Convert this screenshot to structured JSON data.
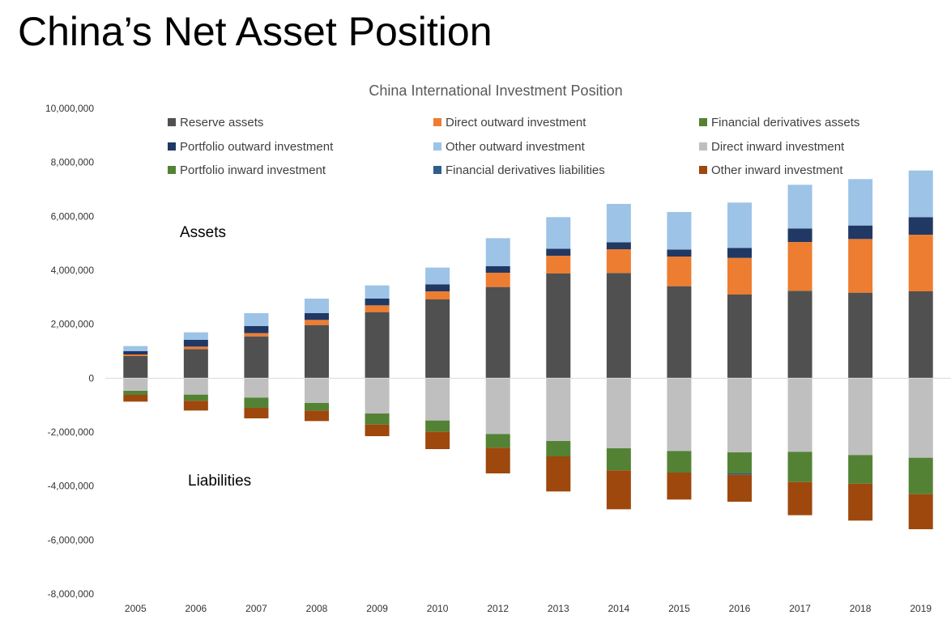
{
  "slide": {
    "title": "China’s Net Asset Position"
  },
  "chart_data": {
    "type": "bar",
    "stacked": true,
    "title": "China International Investment Position",
    "categories": [
      "2005",
      "2006",
      "2007",
      "2008",
      "2009",
      "2010",
      "2012",
      "2013",
      "2014",
      "2015",
      "2016",
      "2017",
      "2018",
      "2019"
    ],
    "ylim": [
      -8000000,
      10000000
    ],
    "yticks": [
      10000000,
      8000000,
      6000000,
      4000000,
      2000000,
      0,
      -2000000,
      -4000000,
      -6000000,
      -8000000
    ],
    "ytick_labels": [
      "10,000,000",
      "8,000,000",
      "6,000,000",
      "4,000,000",
      "2,000,000",
      "0",
      "-2,000,000",
      "-4,000,000",
      "-6,000,000",
      "-8,000,000"
    ],
    "grid": false,
    "legend_position": "top",
    "annotations": {
      "assets": "Assets",
      "liabilities": "Liabilities"
    },
    "series": [
      {
        "name": "Reserve assets",
        "color": "#505050",
        "values": [
          820000,
          1080000,
          1550000,
          1970000,
          2450000,
          2920000,
          3380000,
          3880000,
          3900000,
          3410000,
          3100000,
          3240000,
          3170000,
          3220000
        ]
      },
      {
        "name": "Direct outward investment",
        "color": "#ED7D31",
        "values": [
          60000,
          90000,
          120000,
          190000,
          250000,
          300000,
          530000,
          660000,
          880000,
          1100000,
          1360000,
          1810000,
          1990000,
          2100000
        ]
      },
      {
        "name": "Financial derivatives assets",
        "color": "#548235",
        "values": [
          0,
          0,
          0,
          0,
          0,
          0,
          0,
          0,
          0,
          0,
          0,
          0,
          0,
          0
        ]
      },
      {
        "name": "Portfolio outward investment",
        "color": "#203864",
        "values": [
          120000,
          250000,
          260000,
          250000,
          250000,
          260000,
          240000,
          260000,
          260000,
          260000,
          370000,
          500000,
          500000,
          650000
        ]
      },
      {
        "name": "Other outward investment",
        "color": "#9DC3E6",
        "values": [
          190000,
          280000,
          480000,
          540000,
          490000,
          620000,
          1040000,
          1170000,
          1420000,
          1390000,
          1680000,
          1620000,
          1720000,
          1730000
        ]
      },
      {
        "name": "Direct inward investment",
        "color": "#BFBFBF",
        "values": [
          -470000,
          -610000,
          -720000,
          -920000,
          -1310000,
          -1570000,
          -2070000,
          -2330000,
          -2600000,
          -2700000,
          -2750000,
          -2730000,
          -2850000,
          -2950000
        ]
      },
      {
        "name": "Portfolio inward investment",
        "color": "#548235",
        "values": [
          -150000,
          -230000,
          -380000,
          -280000,
          -410000,
          -420000,
          -510000,
          -570000,
          -820000,
          -800000,
          -780000,
          -1120000,
          -1060000,
          -1350000
        ]
      },
      {
        "name": "Financial derivatives liabilities",
        "color": "#2E5E8C",
        "values": [
          0,
          0,
          0,
          0,
          0,
          0,
          0,
          0,
          0,
          0,
          -50000,
          0,
          0,
          0
        ]
      },
      {
        "name": "Other inward investment",
        "color": "#9E480E",
        "values": [
          -250000,
          -360000,
          -390000,
          -390000,
          -430000,
          -640000,
          -950000,
          -1300000,
          -1440000,
          -1000000,
          -1000000,
          -1230000,
          -1370000,
          -1300000
        ]
      }
    ]
  }
}
